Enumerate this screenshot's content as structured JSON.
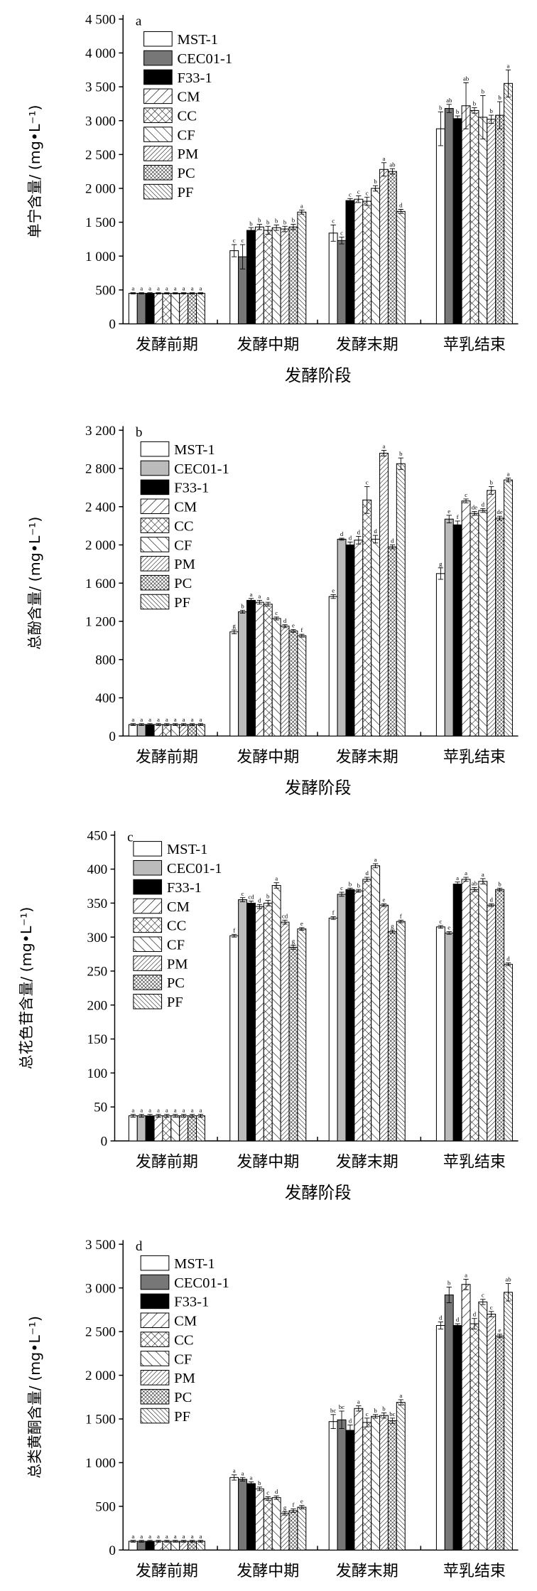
{
  "series": [
    "MST-1",
    "CEC01-1",
    "F33-1",
    "CM",
    "CC",
    "CF",
    "PM",
    "PC",
    "PF"
  ],
  "categories": [
    "发酵前期",
    "发酵中期",
    "发酵末期",
    "苹乳结束"
  ],
  "chart_data": [
    {
      "type": "bar",
      "label": "a",
      "title": "",
      "xlabel": "发酵阶段",
      "ylabel": "单宁含量/ (mg•L⁻¹)",
      "ylim": [
        0,
        4500
      ],
      "ystep": 500,
      "values": [
        [
          450,
          450,
          450,
          450,
          450,
          450,
          450,
          450,
          450
        ],
        [
          1080,
          990,
          1380,
          1430,
          1380,
          1420,
          1400,
          1430,
          1650
        ],
        [
          1340,
          1230,
          1820,
          1840,
          1810,
          2000,
          2280,
          2250,
          1660
        ],
        [
          2880,
          3180,
          3030,
          3220,
          3150,
          3050,
          3020,
          3080,
          3550
        ]
      ],
      "errors": [
        [
          10,
          10,
          10,
          10,
          10,
          10,
          10,
          10,
          10
        ],
        [
          90,
          180,
          40,
          40,
          60,
          40,
          40,
          40,
          30
        ],
        [
          120,
          50,
          30,
          50,
          60,
          40,
          100,
          40,
          30
        ],
        [
          250,
          60,
          40,
          340,
          40,
          320,
          60,
          200,
          200
        ]
      ],
      "letters": [
        [
          "a",
          "a",
          "a",
          "a",
          "a",
          "a",
          "a",
          "a",
          "a"
        ],
        [
          "c",
          "c",
          "b",
          "b",
          "b",
          "b",
          "b",
          "b",
          "a"
        ],
        [
          "c",
          "c",
          "c",
          "c",
          "c",
          "b",
          "a",
          "ab",
          "d"
        ],
        [
          "b",
          "ab",
          "b",
          "ab",
          "b",
          "b",
          "b",
          "b",
          "a"
        ]
      ]
    },
    {
      "type": "bar",
      "label": "b",
      "title": "",
      "xlabel": "发酵阶段",
      "ylabel": "总酚含量/ (mg•L⁻¹)",
      "ylim": [
        0,
        3200
      ],
      "ystep": 400,
      "values": [
        [
          120,
          120,
          120,
          120,
          120,
          120,
          120,
          120,
          120
        ],
        [
          1090,
          1300,
          1420,
          1400,
          1380,
          1230,
          1150,
          1100,
          1050
        ],
        [
          1460,
          2060,
          2000,
          2050,
          2470,
          2060,
          2960,
          1980,
          2850
        ],
        [
          1700,
          2270,
          2210,
          2460,
          2330,
          2360,
          2570,
          2280,
          2680
        ]
      ],
      "errors": [
        [
          10,
          10,
          10,
          10,
          10,
          10,
          10,
          10,
          10
        ],
        [
          20,
          15,
          20,
          20,
          20,
          15,
          15,
          15,
          15
        ],
        [
          20,
          10,
          30,
          40,
          140,
          40,
          30,
          20,
          60
        ],
        [
          60,
          40,
          40,
          20,
          20,
          20,
          40,
          20,
          20
        ]
      ],
      "letters": [
        [
          "a",
          "a",
          "a",
          "a",
          "a",
          "a",
          "a",
          "a",
          "a"
        ],
        [
          "g",
          "b",
          "a",
          "a",
          "a",
          "c",
          "d",
          "e",
          "f"
        ],
        [
          "e",
          "d",
          "d",
          "d",
          "c",
          "d",
          "a",
          "d",
          "b"
        ],
        [
          "g",
          "e",
          "f",
          "c",
          "de",
          "d",
          "b",
          "de",
          "a"
        ]
      ]
    },
    {
      "type": "bar",
      "label": "c",
      "title": "",
      "xlabel": "发酵阶段",
      "ylabel": "总花色苷含量/ (mg•L⁻¹)",
      "ylim": [
        0,
        450
      ],
      "ystep": 50,
      "values": [
        [
          37,
          37,
          37,
          37,
          37,
          37,
          37,
          37,
          37
        ],
        [
          302,
          355,
          350,
          345,
          350,
          376,
          322,
          285,
          312
        ],
        [
          328,
          363,
          370,
          368,
          385,
          405,
          347,
          308,
          323
        ],
        [
          315,
          306,
          378,
          385,
          370,
          382,
          347,
          370,
          260
        ]
      ],
      "errors": [
        [
          2,
          2,
          2,
          2,
          2,
          2,
          2,
          2,
          2
        ],
        [
          2,
          3,
          3,
          3,
          4,
          4,
          3,
          3,
          2
        ],
        [
          2,
          3,
          2,
          2,
          3,
          3,
          2,
          2,
          2
        ],
        [
          2,
          2,
          3,
          3,
          3,
          4,
          2,
          2,
          2
        ]
      ],
      "letters": [
        [
          "a",
          "a",
          "a",
          "a",
          "a",
          "a",
          "a",
          "a",
          "a"
        ],
        [
          "f",
          "c",
          "cd",
          "d",
          "b",
          "a",
          "cd",
          "g",
          "e"
        ],
        [
          "f",
          "c",
          "b",
          "b",
          "d",
          "a",
          "e",
          "g",
          "f"
        ],
        [
          "c",
          "e",
          "a",
          "a",
          "ab",
          "a",
          "d",
          "b",
          "d"
        ]
      ]
    },
    {
      "type": "bar",
      "label": "d",
      "title": "",
      "xlabel": "发酵阶段",
      "ylabel": "总类黄酮含量/ (mg•L⁻¹)",
      "ylim": [
        0,
        3500
      ],
      "ystep": 500,
      "values": [
        [
          100,
          100,
          100,
          100,
          100,
          100,
          100,
          100,
          100
        ],
        [
          830,
          810,
          760,
          700,
          590,
          600,
          420,
          450,
          490
        ],
        [
          1470,
          1490,
          1370,
          1620,
          1460,
          1530,
          1540,
          1480,
          1690
        ],
        [
          2570,
          2920,
          2570,
          3040,
          2590,
          2840,
          2700,
          2450,
          2950
        ]
      ],
      "errors": [
        [
          10,
          10,
          10,
          10,
          10,
          10,
          10,
          10,
          10
        ],
        [
          30,
          20,
          20,
          20,
          20,
          20,
          20,
          20,
          20
        ],
        [
          80,
          100,
          60,
          30,
          50,
          20,
          30,
          30,
          30
        ],
        [
          40,
          90,
          20,
          60,
          60,
          30,
          30,
          20,
          100
        ]
      ],
      "letters": [
        [
          "a",
          "a",
          "a",
          "a",
          "a",
          "a",
          "a",
          "a",
          "a"
        ],
        [
          "a",
          "a",
          "a",
          "b",
          "c",
          "d",
          "g",
          "f",
          "e"
        ],
        [
          "bc",
          "bc",
          "d",
          "a",
          "c",
          "b",
          "b",
          "bc",
          "a"
        ],
        [
          "d",
          "b",
          "d",
          "a",
          "d",
          "c",
          "c",
          "e",
          "ab"
        ]
      ]
    }
  ]
}
